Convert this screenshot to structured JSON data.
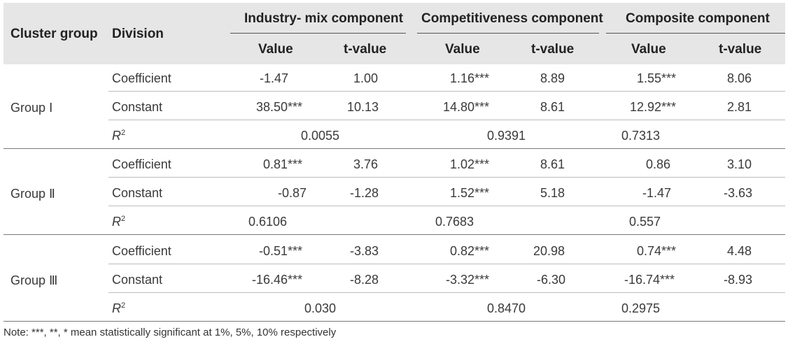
{
  "header": {
    "cluster_group": "Cluster group",
    "division": "Division",
    "industry_mix": "Industry- mix component",
    "competitiveness": "Competitiveness component",
    "composite": "Composite component",
    "value": "Value",
    "t_value": "t-value"
  },
  "groups": [
    {
      "name": "Group Ⅰ",
      "coef_label": "Coefficient",
      "const_label": "Constant",
      "r2_label": "R",
      "r2_sup": "2",
      "coef": [
        "-1.47",
        "1.00",
        "1.16***",
        "8.89",
        "1.55***",
        "8.06"
      ],
      "const": [
        "38.50***",
        "10.13",
        "14.80***",
        "8.61",
        "12.92***",
        "2.81"
      ],
      "r2": [
        "0.0055",
        "0.9391",
        "0.7313"
      ]
    },
    {
      "name": "Group Ⅱ",
      "coef_label": "Coefficient",
      "const_label": "Constant",
      "r2_label": "R",
      "r2_sup": "2",
      "coef": [
        "0.81***",
        "3.76",
        "1.02***",
        "8.61",
        "0.86",
        "3.10"
      ],
      "const": [
        "-0.87",
        "-1.28",
        "1.52***",
        "5.18",
        "-1.47",
        "-3.63"
      ],
      "r2": [
        "0.6106",
        "0.7683",
        "0.557"
      ]
    },
    {
      "name": "Group Ⅲ",
      "coef_label": "Coefficient",
      "const_label": "Constant",
      "r2_label": "R",
      "r2_sup": "2",
      "coef": [
        "-0.51***",
        "-3.83",
        "0.82***",
        "20.98",
        "0.74***",
        "4.48"
      ],
      "const": [
        "-16.46***",
        "-8.28",
        "-3.32***",
        "-6.30",
        "-16.74***",
        "-8.93"
      ],
      "r2": [
        "0.030",
        "0.8470",
        "0.2975"
      ]
    }
  ],
  "note": "Note: ***, **, * mean statistically significant at 1%, 5%, 10% respectively"
}
